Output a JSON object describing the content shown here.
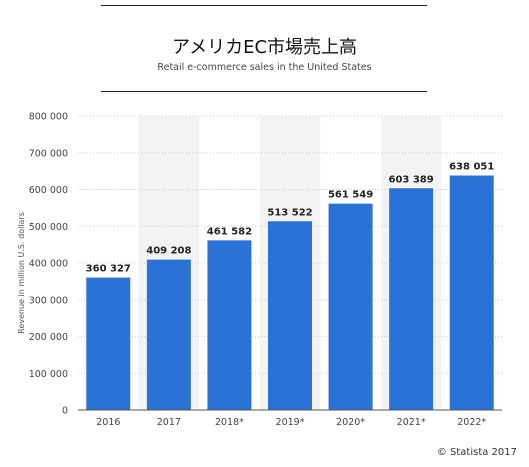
{
  "header": {
    "title": "アメリカEC市場売上高",
    "subtitle": "Retail e-commerce sales in the United States"
  },
  "footer": {
    "credit": "© Statista 2017"
  },
  "colors": {
    "bar": "#2a72d6",
    "grid": "#cfcfcf",
    "band": "#f3f3f3",
    "axis": "#555555"
  },
  "chart_data": {
    "type": "bar",
    "title": "アメリカEC市場売上高",
    "subtitle": "Retail e-commerce sales in the United States",
    "xlabel": "",
    "ylabel": "Revenue in million U.S. dollars",
    "ylim": [
      0,
      800000
    ],
    "yticks": [
      "0",
      "100 000",
      "200 000",
      "300 000",
      "400 000",
      "500 000",
      "600 000",
      "700 000",
      "800 000"
    ],
    "ytick_values": [
      0,
      100000,
      200000,
      300000,
      400000,
      500000,
      600000,
      700000,
      800000
    ],
    "grid": true,
    "categories": [
      "2016",
      "2017",
      "2018*",
      "2019*",
      "2020*",
      "2021*",
      "2022*"
    ],
    "values": [
      360327,
      409208,
      461582,
      513522,
      561549,
      603389,
      638051
    ],
    "value_labels": [
      "360 327",
      "409 208",
      "461 582",
      "513 522",
      "561 549",
      "603 389",
      "638 051"
    ]
  }
}
